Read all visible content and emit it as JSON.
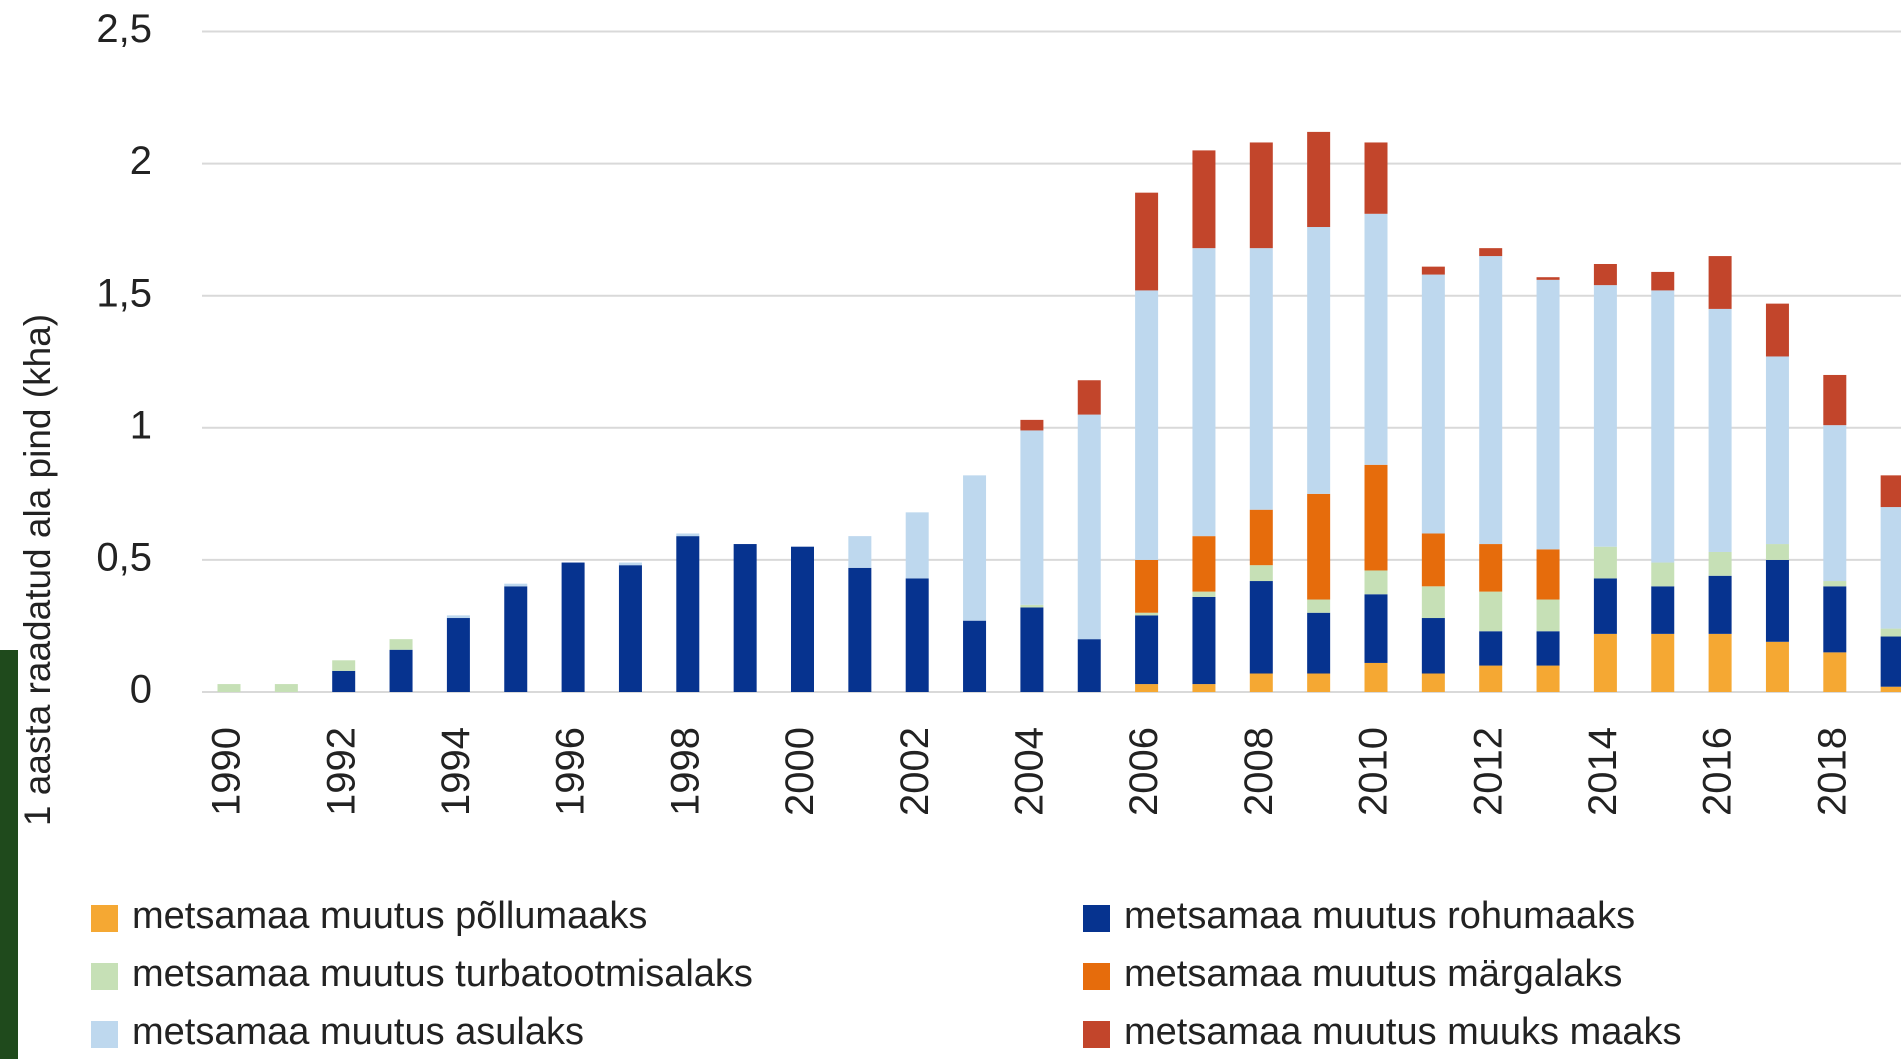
{
  "chart_data": {
    "type": "stacked-bar",
    "ylabel": "1 aasta raadatud ala pind (kha)",
    "categories": [
      "1990",
      null,
      "1992",
      null,
      "1994",
      null,
      "1996",
      null,
      "1998",
      null,
      "2000",
      null,
      "2002",
      null,
      "2004",
      null,
      "2006",
      null,
      "2008",
      null,
      "2010",
      null,
      "2012",
      null,
      "2014",
      null,
      "2016",
      null,
      "2018",
      null
    ],
    "ylim": [
      0,
      2.5
    ],
    "yticks": [
      0,
      {
        "value": 0.5,
        "label": "0,5"
      },
      1,
      {
        "value": 1.5,
        "label": "1,5"
      },
      2,
      {
        "value": 2.5,
        "label": "2,5"
      }
    ],
    "grid": true,
    "series": [
      {
        "name": "metsamaa muutus põllumaaks",
        "color": "#f5a833",
        "values": [
          0,
          0,
          0,
          0,
          0,
          0,
          0,
          0,
          0,
          0,
          0,
          0,
          0,
          0,
          0,
          0,
          0.03,
          0.03,
          0.07,
          0.07,
          0.11,
          0.07,
          0.1,
          0.1,
          0.22,
          0.22,
          0.22,
          0.19,
          0.15,
          0.02
        ]
      },
      {
        "name": "metsamaa muutus rohumaaks",
        "color": "#06338f",
        "values": [
          0,
          0,
          0.08,
          0.16,
          0.28,
          0.4,
          0.49,
          0.48,
          0.59,
          0.56,
          0.55,
          0.47,
          0.43,
          0.27,
          0.32,
          0.2,
          0.26,
          0.33,
          0.35,
          0.23,
          0.26,
          0.21,
          0.13,
          0.13,
          0.21,
          0.18,
          0.22,
          0.31,
          0.25,
          0.19
        ]
      },
      {
        "name": "metsamaa muutus turbatootmisalaks",
        "color": "#c6e0b6",
        "values": [
          0.03,
          0.03,
          0.04,
          0.04,
          0,
          0,
          0,
          0,
          0,
          0,
          0,
          0,
          0,
          0,
          0.01,
          0,
          0.01,
          0.02,
          0.06,
          0.05,
          0.09,
          0.12,
          0.15,
          0.12,
          0.12,
          0.09,
          0.09,
          0.06,
          0.02,
          0.03
        ]
      },
      {
        "name": "metsamaa muutus märgalaks",
        "color": "#e66c0c",
        "values": [
          0,
          0,
          0,
          0,
          0,
          0,
          0,
          0,
          0,
          0,
          0,
          0,
          0,
          0,
          0,
          0,
          0.2,
          0.21,
          0.21,
          0.4,
          0.4,
          0.2,
          0.18,
          0.19,
          0,
          0,
          0,
          0,
          0,
          0
        ]
      },
      {
        "name": "metsamaa muutus asulaks",
        "color": "#bed8ee",
        "values": [
          0,
          0,
          0,
          0,
          0.01,
          0.01,
          0,
          0.01,
          0.01,
          0,
          0,
          0.12,
          0.25,
          0.55,
          0.66,
          0.85,
          1.02,
          1.09,
          0.99,
          1.01,
          0.95,
          0.98,
          1.09,
          1.02,
          0.99,
          1.03,
          0.92,
          0.71,
          0.59,
          0.46
        ]
      },
      {
        "name": "metsamaa muutus muuks maaks",
        "color": "#c2452b",
        "values": [
          0,
          0,
          0,
          0,
          0,
          0,
          0,
          0,
          0,
          0,
          0,
          0,
          0,
          0,
          0.04,
          0.13,
          0.37,
          0.37,
          0.4,
          0.36,
          0.27,
          0.03,
          0.03,
          0.01,
          0.08,
          0.07,
          0.2,
          0.2,
          0.19,
          0.12
        ]
      }
    ]
  }
}
